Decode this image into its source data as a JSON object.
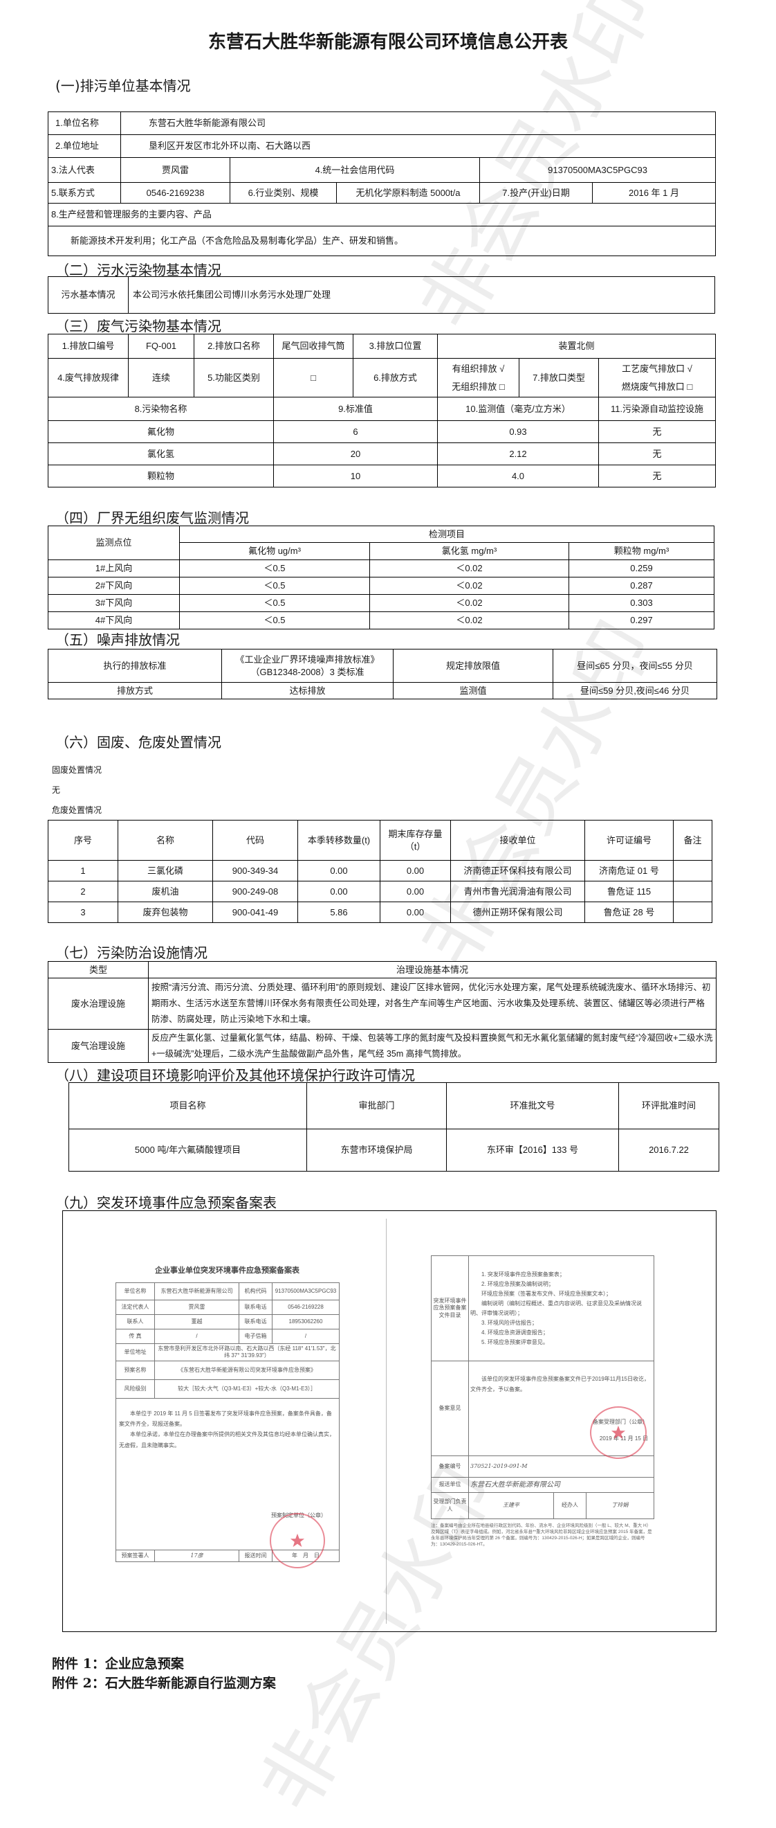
{
  "title": "东营石大胜华新能源有限公司环境信息公开表",
  "watermark": "非会员水印",
  "s1": {
    "heading": "(一)排污单位基本情况",
    "name_l": "1.单位名称",
    "name_v": "东营石大胜华新能源有限公司",
    "addr_l": "2.单位地址",
    "addr_v": "垦利区开发区市北外环以南、石大路以西",
    "rep_l": "3.法人代表",
    "rep_v": "贾风雷",
    "code_l": "4.统一社会信用代码",
    "code_v": "91370500MA3C5PGC93",
    "tel_l": "5.联系方式",
    "tel_v": "0546-2169238",
    "ind_l": "6.行业类别、规模",
    "ind_v": "无机化学原料制造 5000t/a",
    "date_l": "7.投产(开业)日期",
    "date_v": "2016 年 1 月",
    "biz_l": "8.生产经营和管理服务的主要内容、产品",
    "biz_v": "新能源技术开发利用；化工产品（不含危险品及易制毒化学品）生产、研发和销售。"
  },
  "s2": {
    "heading": "（二）污水污染物基本情况",
    "label": "污水基本情况",
    "value": "本公司污水依托集团公司博川水务污水处理厂处理"
  },
  "s3": {
    "heading": "（三）废气污染物基本情况",
    "r1": [
      "1.排放口编号",
      "FQ-001",
      "2.排放口名称",
      "尾气回收排气筒",
      "3.排放口位置",
      "装置北侧"
    ],
    "r2": [
      "4.废气排放规律",
      "连续",
      "5.功能区类别",
      "□",
      "6.排放方式",
      "有组织排放 √",
      "无组织排放 □",
      "7.排放口类型",
      "工艺废气排放口 √",
      "燃烧废气排放口 □"
    ],
    "headers": [
      "8.污染物名称",
      "9.标准值",
      "10.监测值（毫克/立方米）",
      "11.污染源自动监控设施"
    ],
    "rows": [
      [
        "氟化物",
        "6",
        "0.93",
        "无"
      ],
      [
        "氯化氢",
        "20",
        "2.12",
        "无"
      ],
      [
        "颗粒物",
        "10",
        "4.0",
        "无"
      ]
    ]
  },
  "s4": {
    "heading": "（四）厂界无组织废气监测情况",
    "site": "监测点位",
    "items": "检测项目",
    "cols": [
      "氟化物 ug/m³",
      "氯化氢 mg/m³",
      "颗粒物 mg/m³"
    ],
    "rows": [
      [
        "1#上风向",
        "＜0.5",
        "＜0.02",
        "0.259"
      ],
      [
        "2#下风向",
        "＜0.5",
        "＜0.02",
        "0.287"
      ],
      [
        "3#下风向",
        "＜0.5",
        "＜0.02",
        "0.303"
      ],
      [
        "4#下风向",
        "＜0.5",
        "＜0.02",
        "0.297"
      ]
    ]
  },
  "s5": {
    "heading": "（五）噪声排放情况",
    "r1": [
      "执行的排放标准",
      "《工业企业厂界环境噪声排放标准》（GB12348-2008）3 类标准",
      "规定排放限值",
      "昼间≤65 分贝，夜间≤55 分贝"
    ],
    "r2": [
      "排放方式",
      "达标排放",
      "监测值",
      "昼间≤59 分贝,夜间≤46 分贝"
    ]
  },
  "s6": {
    "heading": "（六）固废、危废处置情况",
    "solid_l": "固废处置情况",
    "solid_v": "无",
    "haz_l": "危废处置情况",
    "headers": [
      "序号",
      "名称",
      "代码",
      "本季转移数量(t)",
      "期末库存存量（t）",
      "接收单位",
      "许可证编号",
      "备注"
    ],
    "rows": [
      [
        "1",
        "三氯化磷",
        "900-349-34",
        "0.00",
        "0.00",
        "济南德正环保科技有限公司",
        "济南危证 01 号",
        ""
      ],
      [
        "2",
        "废机油",
        "900-249-08",
        "0.00",
        "0.00",
        "青州市鲁光润滑油有限公司",
        "鲁危证 115",
        ""
      ],
      [
        "3",
        "废弃包装物",
        "900-041-49",
        "5.86",
        "0.00",
        "德州正朔环保有限公司",
        "鲁危证 28 号",
        ""
      ]
    ]
  },
  "s7": {
    "heading": "（七）污染防治设施情况",
    "h1": "类型",
    "h2": "治理设施基本情况",
    "rows": [
      [
        "废水治理设施",
        "按照“清污分流、雨污分流、分质处理、循环利用”的原则规划、建设厂区排水管网，优化污水处理方案，尾气处理系统碱洗废水、循环水场排污、初期雨水、生活污水送至东营博川环保水务有限责任公司处理，对各生产车间等生产区地面、污水收集及处理系统、装置区、储罐区等必须进行严格防渗、防腐处理，防止污染地下水和土壤。"
      ],
      [
        "废气治理设施",
        "反应产生氯化氢、过量氟化氢气体，结晶、粉碎、干燥、包装等工序的氮封废气及投料置换氮气和无水氟化氢储罐的氮封废气经“冷凝回收+二级水洗+一级碱洗”处理后，二级水洗产生盐酸做副产品外售，尾气经 35m 高排气筒排放。"
      ]
    ]
  },
  "s8": {
    "heading": "（八）建设项目环境影响评价及其他环境保护行政许可情况",
    "headers": [
      "项目名称",
      "审批部门",
      "环准批文号",
      "环评批准时间"
    ],
    "row": [
      "5000 吨/年六氟磷酸锂项目",
      "东营市环境保护局",
      "东环审【2016】133 号",
      "2016.7.22"
    ]
  },
  "s9": {
    "heading": "（九）突发环境事件应急预案备案表",
    "left": {
      "title": "企业事业单位突发环境事件应急预案备案表",
      "rows": [
        [
          "单位名称",
          "东营石大胜华新能源有限公司",
          "机构代码",
          "91370500MA3C5PGC93"
        ],
        [
          "法定代表人",
          "贾风雷",
          "联系电话",
          "0546-2169228"
        ],
        [
          "联系人",
          "董越",
          "联系电话",
          "18953062260"
        ],
        [
          "传 真",
          "/",
          "电子信箱",
          "/"
        ]
      ],
      "addr": [
        "单位地址",
        "东营市垦利开发区市北外环路以南、石大路以西（东经 118° 41′1.53″，北纬 37° 31′39.93″）"
      ],
      "plan": [
        "预案名称",
        "《东营石大胜华新能源有限公司突发环境事件应急预案》"
      ],
      "risk": [
        "风险级别",
        "较大［较大-大气（Q3-M1-E3）+较大-水（Q3-M1-E3）］"
      ],
      "p1": "本单位于 2019 年 11 月 5 日签署发布了突发环境事件应急预案，备案条件具备，备案文件齐全，现报送备案。",
      "p2": "本单位承诺，本单位在办理备案中所提供的相关文件及其信息均经本单位确认真实，无虚假，且未隐瞒事实。",
      "seal_l": "预案制定单位（公章）",
      "signer_l": "预案签署人",
      "signer_v": "17彦",
      "time_l": "报送时间",
      "time_v": "年　月　日",
      "stamp": "东营石大胜华新能源有限公司"
    },
    "right": {
      "dir_l": "突发环境事件应急预案备案文件目录",
      "dir": [
        "1. 突发环境事件应急预案备案表；",
        "2. 环境应急预案及编制说明；",
        "环境应急预案（签署发布文件、环境应急预案文本）；",
        "编制说明（编制过程概述、重点内容说明、征求意见及采纳情况说明、评审情况说明）；",
        "3. 环境风险评估报告；",
        "4. 环境应急资源调查报告；",
        "5. 环境应急预案评审意见。"
      ],
      "op_l": "备案意见",
      "op_v": "该单位的突发环境事件应急预案备案文件已于2019年11月15日收讫，文件齐全，予以备案。",
      "op_seal": "备案受理部门（公章）",
      "op_date": "2019 年 11 月 15 日",
      "no_l": "备案编号",
      "no_v": "370521-2019-091-M",
      "unit_l": "报送单位",
      "unit_v": "东营石大胜华新能源有限公司",
      "head_l": "受理部门负责人",
      "head_v": "王建平",
      "agent_l": "经办人",
      "agent_v": "丁玲娟",
      "stamp": "东营市生态环境局垦利分局",
      "note": "注：备案编号由企业所在地县级行政区划代码、年份、流水号、企业环境风险级别（一般 L、较大 M、重大 H）及跨区域（T）表征字母组成。例如，河北省永年县**重大环境风险非跨区域企业环境应急预案 2015 年备案，是永年县环境保护局当年受理的第 26 个备案，则编号为：130429-2015-026-H；如果是跨区域的企业，则编号为：130429-2015-026-HT。"
    }
  },
  "appendix": [
    "附件 1：企业应急预案",
    "附件 2：石大胜华新能源自行监测方案"
  ]
}
